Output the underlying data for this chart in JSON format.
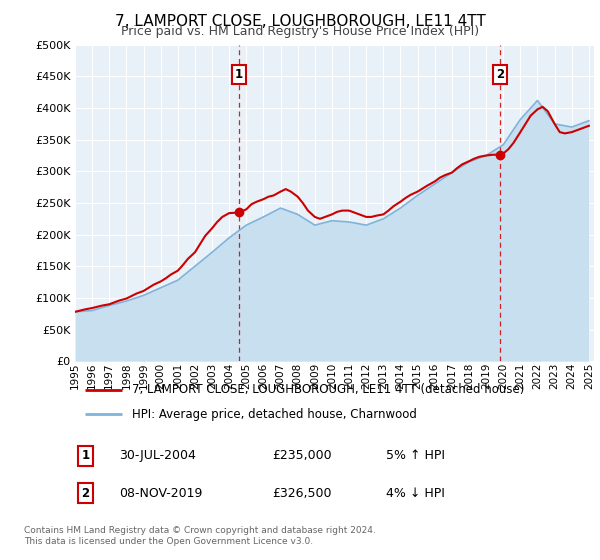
{
  "title": "7, LAMPORT CLOSE, LOUGHBOROUGH, LE11 4TT",
  "subtitle": "Price paid vs. HM Land Registry's House Price Index (HPI)",
  "legend_house": "7, LAMPORT CLOSE, LOUGHBOROUGH, LE11 4TT (detached house)",
  "legend_hpi": "HPI: Average price, detached house, Charnwood",
  "footnote": "Contains HM Land Registry data © Crown copyright and database right 2024.\nThis data is licensed under the Open Government Licence v3.0.",
  "annotation1_date": "30-JUL-2004",
  "annotation1_price": "£235,000",
  "annotation1_hpi": "5% ↑ HPI",
  "annotation2_date": "08-NOV-2019",
  "annotation2_price": "£326,500",
  "annotation2_hpi": "4% ↓ HPI",
  "house_color": "#cc0000",
  "hpi_color": "#7fb3d9",
  "hpi_fill_color": "#c8dff0",
  "fig_bg_color": "#ffffff",
  "plot_bg_color": "#e8f0f8",
  "grid_color": "#ffffff",
  "box_color": "#cc0000",
  "years": [
    1995,
    1996,
    1997,
    1998,
    1999,
    2000,
    2001,
    2002,
    2003,
    2004,
    2005,
    2006,
    2007,
    2008,
    2009,
    2010,
    2011,
    2012,
    2013,
    2014,
    2015,
    2016,
    2017,
    2018,
    2019,
    2020,
    2021,
    2022,
    2023,
    2024,
    2025
  ],
  "hpi_values": [
    78000,
    80000,
    88000,
    95000,
    104000,
    116000,
    128000,
    150000,
    172000,
    195000,
    215000,
    228000,
    242000,
    232000,
    215000,
    222000,
    220000,
    215000,
    225000,
    242000,
    262000,
    280000,
    298000,
    315000,
    325000,
    342000,
    382000,
    412000,
    375000,
    370000,
    380000
  ],
  "house_x": [
    1995.0,
    1995.3,
    1995.6,
    1996.0,
    1996.3,
    1996.6,
    1997.0,
    1997.3,
    1997.6,
    1998.0,
    1998.3,
    1998.6,
    1999.0,
    1999.3,
    1999.6,
    2000.0,
    2000.3,
    2000.6,
    2001.0,
    2001.3,
    2001.6,
    2002.0,
    2002.3,
    2002.6,
    2003.0,
    2003.3,
    2003.6,
    2004.0,
    2004.58,
    2005.0,
    2005.3,
    2005.6,
    2006.0,
    2006.3,
    2006.6,
    2007.0,
    2007.3,
    2007.6,
    2008.0,
    2008.3,
    2008.6,
    2009.0,
    2009.3,
    2009.6,
    2010.0,
    2010.3,
    2010.6,
    2011.0,
    2011.3,
    2011.6,
    2012.0,
    2012.3,
    2012.6,
    2013.0,
    2013.3,
    2013.6,
    2014.0,
    2014.3,
    2014.6,
    2015.0,
    2015.3,
    2015.6,
    2016.0,
    2016.3,
    2016.6,
    2017.0,
    2017.3,
    2017.6,
    2018.0,
    2018.3,
    2018.6,
    2019.0,
    2019.3,
    2019.6,
    2019.83,
    2020.0,
    2020.3,
    2020.6,
    2021.0,
    2021.3,
    2021.6,
    2022.0,
    2022.3,
    2022.6,
    2023.0,
    2023.3,
    2023.6,
    2024.0,
    2024.3,
    2024.6,
    2025.0
  ],
  "house_y": [
    78000,
    80000,
    82000,
    84000,
    86000,
    88000,
    90000,
    93000,
    96000,
    99000,
    103000,
    107000,
    111000,
    116000,
    121000,
    126000,
    131000,
    137000,
    143000,
    152000,
    162000,
    172000,
    185000,
    198000,
    210000,
    220000,
    228000,
    234000,
    235000,
    240000,
    248000,
    252000,
    256000,
    260000,
    262000,
    268000,
    272000,
    268000,
    260000,
    250000,
    238000,
    228000,
    225000,
    228000,
    232000,
    236000,
    238000,
    238000,
    235000,
    232000,
    228000,
    228000,
    230000,
    232000,
    238000,
    245000,
    252000,
    258000,
    263000,
    268000,
    273000,
    278000,
    284000,
    290000,
    294000,
    298000,
    305000,
    311000,
    316000,
    320000,
    323000,
    325000,
    326000,
    326500,
    326500,
    328000,
    335000,
    345000,
    362000,
    375000,
    388000,
    398000,
    402000,
    395000,
    375000,
    362000,
    360000,
    362000,
    365000,
    368000,
    372000
  ],
  "ann1_x": 2004.58,
  "ann1_y": 235000,
  "ann2_x": 2019.83,
  "ann2_y": 326500,
  "ylim": [
    0,
    500000
  ],
  "xlim": [
    1995,
    2025.3
  ],
  "yticks": [
    0,
    50000,
    100000,
    150000,
    200000,
    250000,
    300000,
    350000,
    400000,
    450000,
    500000
  ],
  "xtick_years": [
    1995,
    1996,
    1997,
    1998,
    1999,
    2000,
    2001,
    2002,
    2003,
    2004,
    2005,
    2006,
    2007,
    2008,
    2009,
    2010,
    2011,
    2012,
    2013,
    2014,
    2015,
    2016,
    2017,
    2018,
    2019,
    2020,
    2021,
    2022,
    2023,
    2024,
    2025
  ]
}
